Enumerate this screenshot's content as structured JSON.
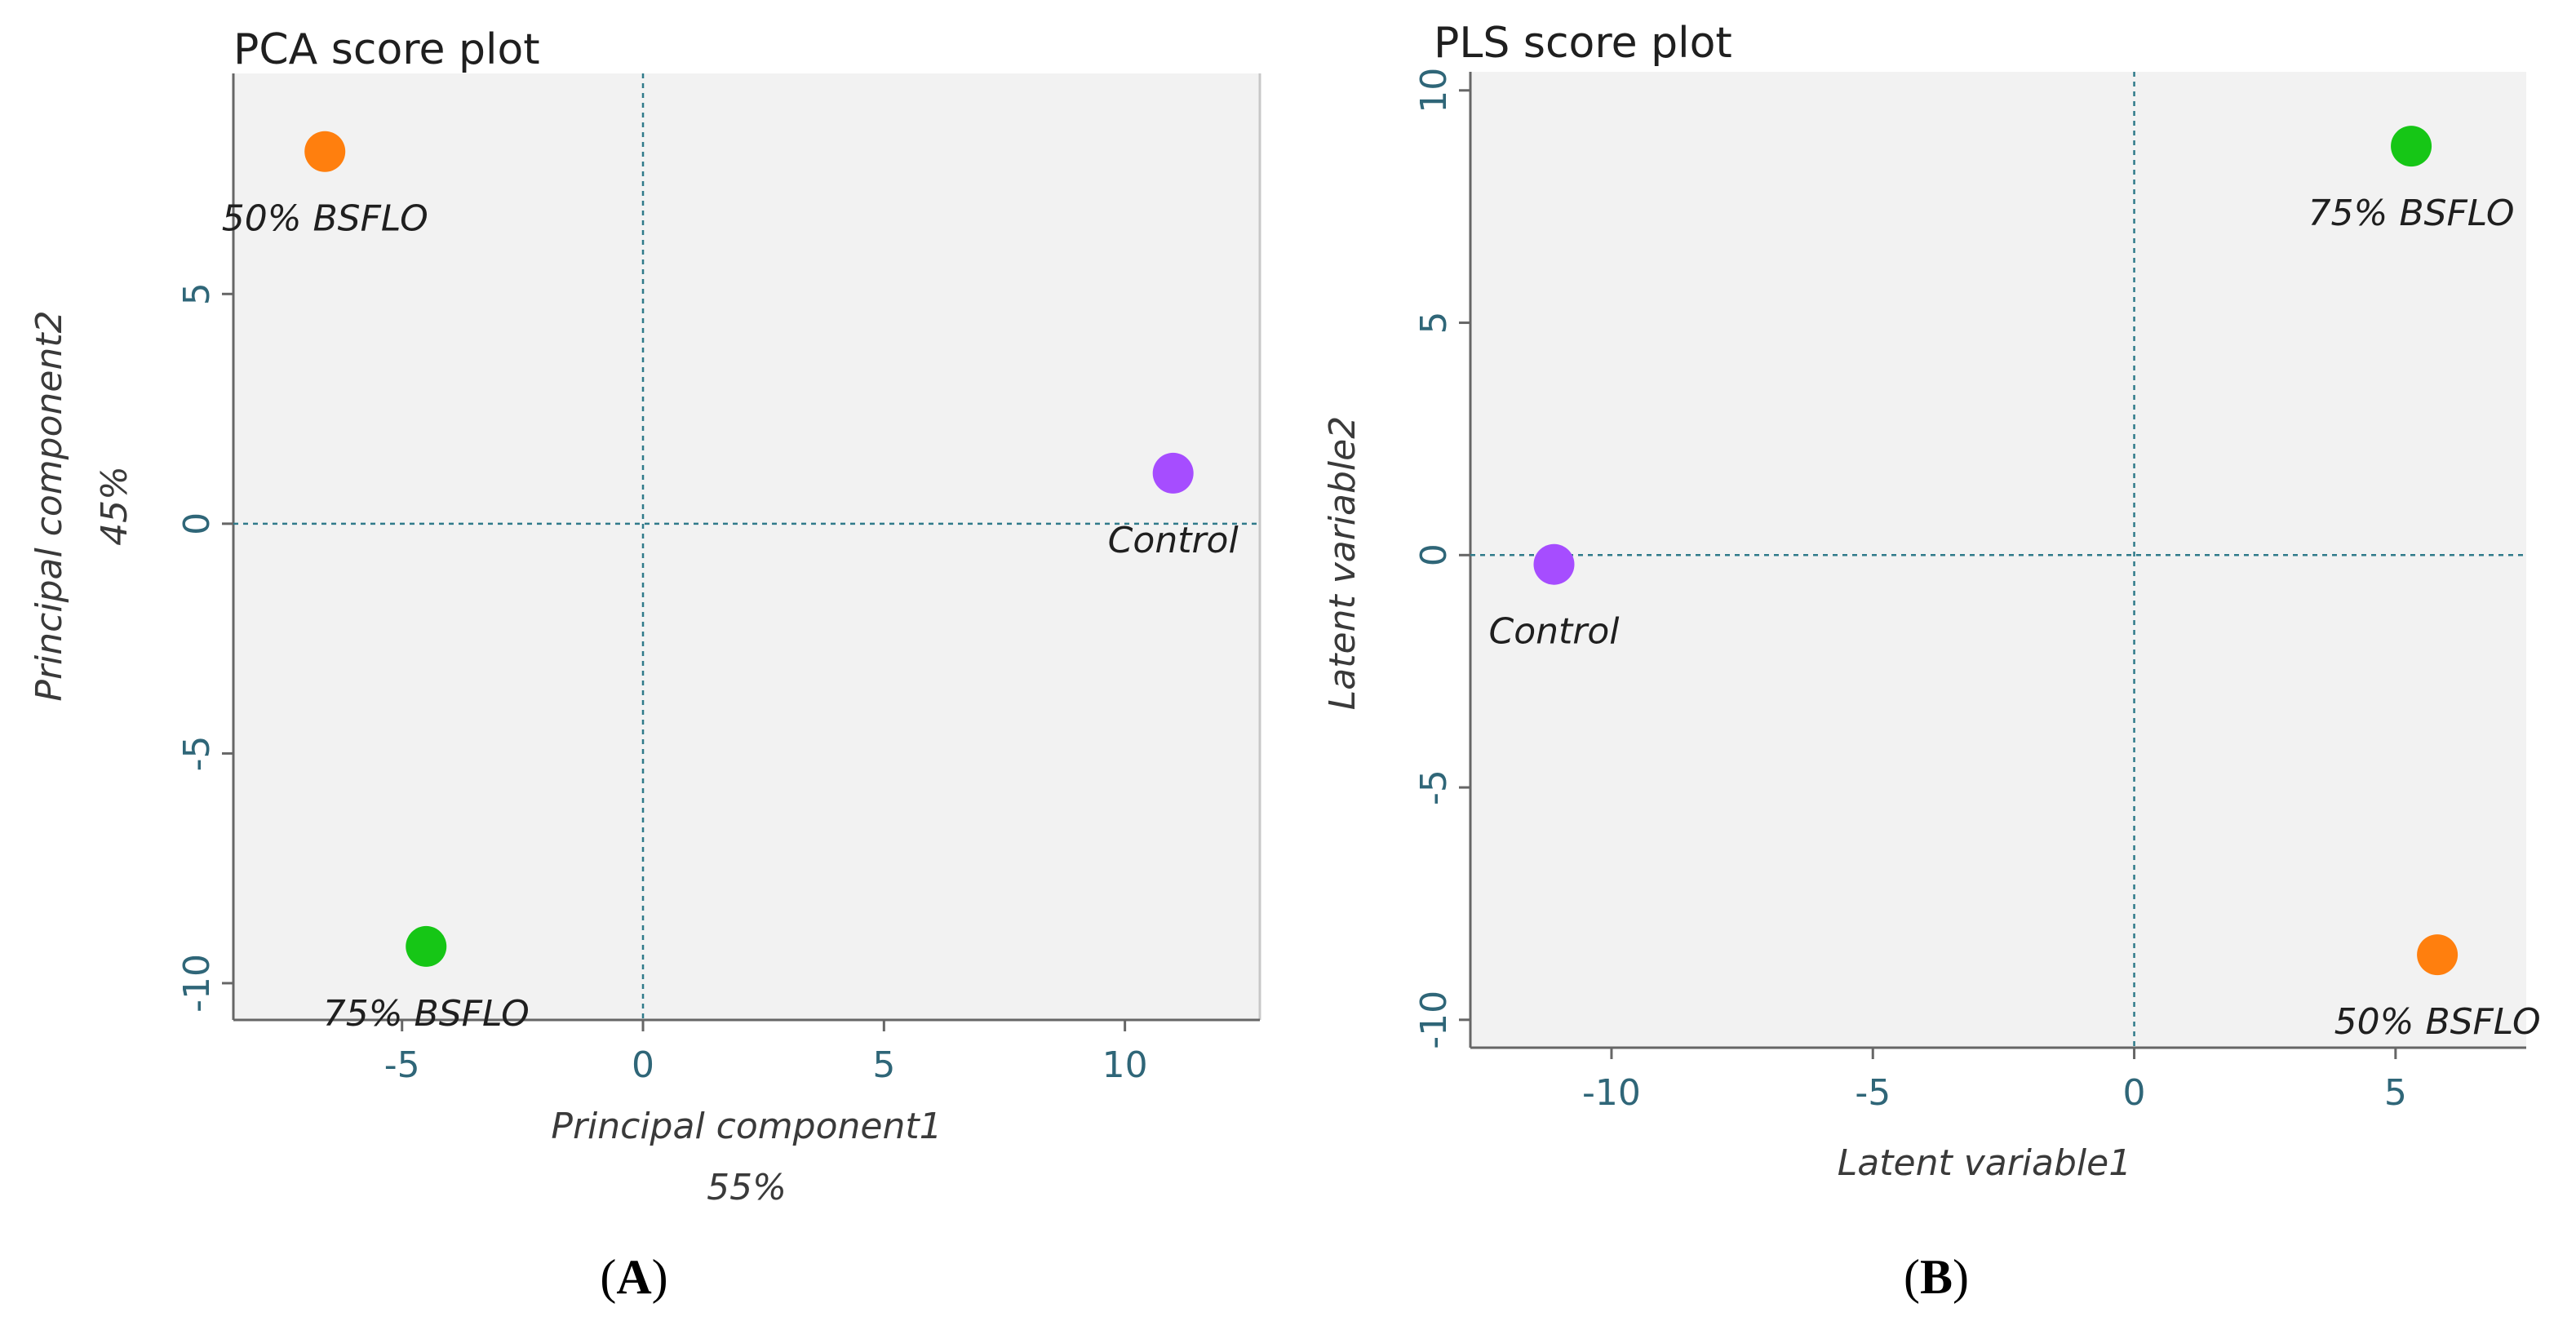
{
  "chart_data": [
    {
      "type": "scatter",
      "panel_label": {
        "open": "(",
        "letter": "A",
        "close": ")"
      },
      "title": "PCA score plot",
      "xlabel": "Principal component1",
      "xlabel_pct": "55%",
      "ylabel": "Principal component2",
      "ylabel_pct": "45%",
      "xlim": [
        -8.5,
        12.8
      ],
      "ylim": [
        -10.8,
        9.8
      ],
      "xticks": [
        -5,
        0,
        5,
        10
      ],
      "yticks": [
        -10,
        -5,
        0,
        5
      ],
      "grid": false,
      "points": [
        {
          "label": "50% BSFLO",
          "x": -6.6,
          "y": 8.1,
          "color": "#ff7f0e",
          "label_pos": "below"
        },
        {
          "label": "Control",
          "x": 11.0,
          "y": 1.1,
          "color": "#a64dff",
          "label_pos": "below"
        },
        {
          "label": "75% BSFLO",
          "x": -4.5,
          "y": -9.2,
          "color": "#16c616",
          "label_pos": "below"
        }
      ]
    },
    {
      "type": "scatter",
      "panel_label": {
        "open": "(",
        "letter": "B",
        "close": ")"
      },
      "title": "PLS score plot",
      "xlabel": "Latent variable1",
      "ylabel": "Latent variable2",
      "xlim": [
        -12.7,
        7.5
      ],
      "ylim": [
        -10.6,
        10.4
      ],
      "xticks": [
        -10,
        -5,
        0,
        5
      ],
      "yticks": [
        -10,
        -5,
        0,
        5,
        10
      ],
      "grid": false,
      "points": [
        {
          "label": "75% BSFLO",
          "x": 5.3,
          "y": 8.8,
          "color": "#16c616",
          "label_pos": "below"
        },
        {
          "label": "Control",
          "x": -11.1,
          "y": -0.2,
          "color": "#a64dff",
          "label_pos": "below"
        },
        {
          "label": "50% BSFLO",
          "x": 5.8,
          "y": -8.6,
          "color": "#ff7f0e",
          "label_pos": "below"
        }
      ]
    }
  ]
}
